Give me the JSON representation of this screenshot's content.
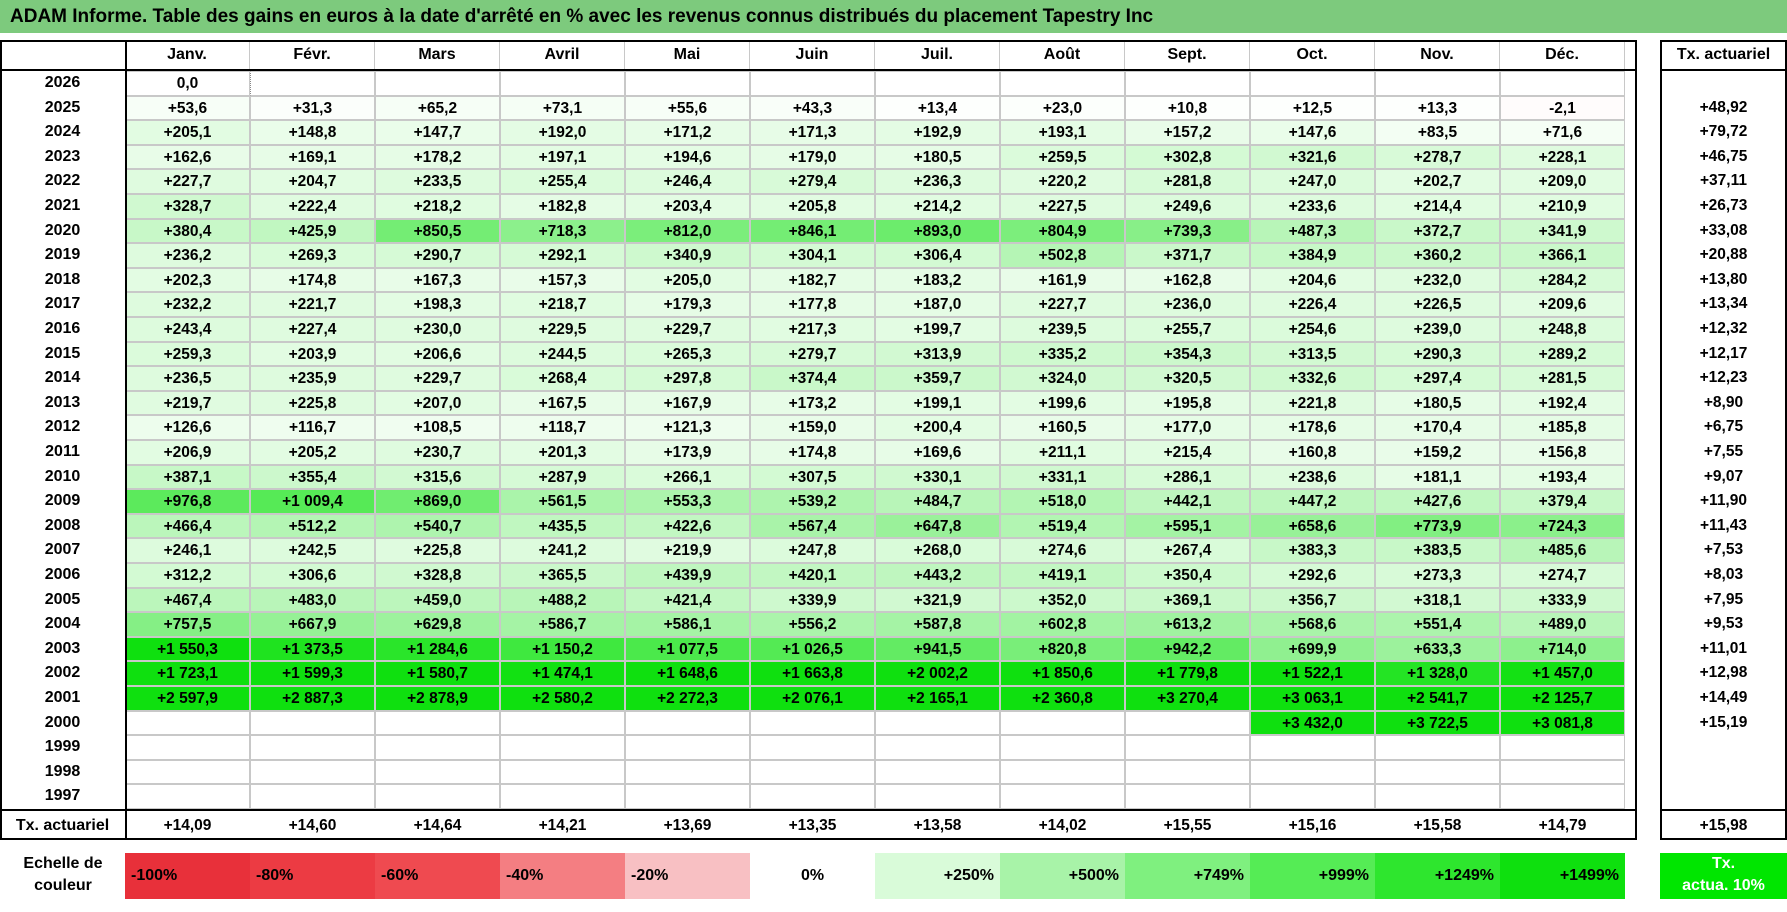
{
  "title": "ADAM Informe. Table des gains en euros à la date d'arrêté en % avec les revenus connus distribués du placement Tapestry Inc",
  "months": [
    "Janv.",
    "Févr.",
    "Mars",
    "Avril",
    "Mai",
    "Juin",
    "Juil.",
    "Août",
    "Sept.",
    "Oct.",
    "Nov.",
    "Déc."
  ],
  "tx_header": "Tx. actuariel",
  "rows": [
    {
      "year": "2026",
      "values": [
        "0,0",
        "",
        "",
        "",
        "",
        "",
        "",
        "",
        "",
        "",
        "",
        ""
      ],
      "tx": ""
    },
    {
      "year": "2025",
      "values": [
        "+53,6",
        "+31,3",
        "+65,2",
        "+73,1",
        "+55,6",
        "+43,3",
        "+13,4",
        "+23,0",
        "+10,8",
        "+12,5",
        "+13,3",
        "-2,1"
      ],
      "tx": "+48,92"
    },
    {
      "year": "2024",
      "values": [
        "+205,1",
        "+148,8",
        "+147,7",
        "+192,0",
        "+171,2",
        "+171,3",
        "+192,9",
        "+193,1",
        "+157,2",
        "+147,6",
        "+83,5",
        "+71,6"
      ],
      "tx": "+79,72"
    },
    {
      "year": "2023",
      "values": [
        "+162,6",
        "+169,1",
        "+178,2",
        "+197,1",
        "+194,6",
        "+179,0",
        "+180,5",
        "+259,5",
        "+302,8",
        "+321,6",
        "+278,7",
        "+228,1"
      ],
      "tx": "+46,75"
    },
    {
      "year": "2022",
      "values": [
        "+227,7",
        "+204,7",
        "+233,5",
        "+255,4",
        "+246,4",
        "+279,4",
        "+236,3",
        "+220,2",
        "+281,8",
        "+247,0",
        "+202,7",
        "+209,0"
      ],
      "tx": "+37,11"
    },
    {
      "year": "2021",
      "values": [
        "+328,7",
        "+222,4",
        "+218,2",
        "+182,8",
        "+203,4",
        "+205,8",
        "+214,2",
        "+227,5",
        "+249,6",
        "+233,6",
        "+214,4",
        "+210,9"
      ],
      "tx": "+26,73"
    },
    {
      "year": "2020",
      "values": [
        "+380,4",
        "+425,9",
        "+850,5",
        "+718,3",
        "+812,0",
        "+846,1",
        "+893,0",
        "+804,9",
        "+739,3",
        "+487,3",
        "+372,7",
        "+341,9"
      ],
      "tx": "+33,08"
    },
    {
      "year": "2019",
      "values": [
        "+236,2",
        "+269,3",
        "+290,7",
        "+292,1",
        "+340,9",
        "+304,1",
        "+306,4",
        "+502,8",
        "+371,7",
        "+384,9",
        "+360,2",
        "+366,1"
      ],
      "tx": "+20,88"
    },
    {
      "year": "2018",
      "values": [
        "+202,3",
        "+174,8",
        "+167,3",
        "+157,3",
        "+205,0",
        "+182,7",
        "+183,2",
        "+161,9",
        "+162,8",
        "+204,6",
        "+232,0",
        "+284,2"
      ],
      "tx": "+13,80"
    },
    {
      "year": "2017",
      "values": [
        "+232,2",
        "+221,7",
        "+198,3",
        "+218,7",
        "+179,3",
        "+177,8",
        "+187,0",
        "+227,7",
        "+236,0",
        "+226,4",
        "+226,5",
        "+209,6"
      ],
      "tx": "+13,34"
    },
    {
      "year": "2016",
      "values": [
        "+243,4",
        "+227,4",
        "+230,0",
        "+229,5",
        "+229,7",
        "+217,3",
        "+199,7",
        "+239,5",
        "+255,7",
        "+254,6",
        "+239,0",
        "+248,8"
      ],
      "tx": "+12,32"
    },
    {
      "year": "2015",
      "values": [
        "+259,3",
        "+203,9",
        "+206,6",
        "+244,5",
        "+265,3",
        "+279,7",
        "+313,9",
        "+335,2",
        "+354,3",
        "+313,5",
        "+290,3",
        "+289,2"
      ],
      "tx": "+12,17"
    },
    {
      "year": "2014",
      "values": [
        "+236,5",
        "+235,9",
        "+229,7",
        "+268,4",
        "+297,8",
        "+374,4",
        "+359,7",
        "+324,0",
        "+320,5",
        "+332,6",
        "+297,4",
        "+281,5"
      ],
      "tx": "+12,23"
    },
    {
      "year": "2013",
      "values": [
        "+219,7",
        "+225,8",
        "+207,0",
        "+167,5",
        "+167,9",
        "+173,2",
        "+199,1",
        "+199,6",
        "+195,8",
        "+221,8",
        "+180,5",
        "+192,4"
      ],
      "tx": "+8,90"
    },
    {
      "year": "2012",
      "values": [
        "+126,6",
        "+116,7",
        "+108,5",
        "+118,7",
        "+121,3",
        "+159,0",
        "+200,4",
        "+160,5",
        "+177,0",
        "+178,6",
        "+170,4",
        "+185,8"
      ],
      "tx": "+6,75"
    },
    {
      "year": "2011",
      "values": [
        "+206,9",
        "+205,2",
        "+230,7",
        "+201,3",
        "+173,9",
        "+174,8",
        "+169,6",
        "+211,1",
        "+215,4",
        "+160,8",
        "+159,2",
        "+156,8"
      ],
      "tx": "+7,55"
    },
    {
      "year": "2010",
      "values": [
        "+387,1",
        "+355,4",
        "+315,6",
        "+287,9",
        "+266,1",
        "+307,5",
        "+330,1",
        "+331,1",
        "+286,1",
        "+238,6",
        "+181,1",
        "+193,4"
      ],
      "tx": "+9,07"
    },
    {
      "year": "2009",
      "values": [
        "+976,8",
        "+1 009,4",
        "+869,0",
        "+561,5",
        "+553,3",
        "+539,2",
        "+484,7",
        "+518,0",
        "+442,1",
        "+447,2",
        "+427,6",
        "+379,4"
      ],
      "tx": "+11,90"
    },
    {
      "year": "2008",
      "values": [
        "+466,4",
        "+512,2",
        "+540,7",
        "+435,5",
        "+422,6",
        "+567,4",
        "+647,8",
        "+519,4",
        "+595,1",
        "+658,6",
        "+773,9",
        "+724,3"
      ],
      "tx": "+11,43"
    },
    {
      "year": "2007",
      "values": [
        "+246,1",
        "+242,5",
        "+225,8",
        "+241,2",
        "+219,9",
        "+247,8",
        "+268,0",
        "+274,6",
        "+267,4",
        "+383,3",
        "+383,5",
        "+485,6"
      ],
      "tx": "+7,53"
    },
    {
      "year": "2006",
      "values": [
        "+312,2",
        "+306,6",
        "+328,8",
        "+365,5",
        "+439,9",
        "+420,1",
        "+443,2",
        "+419,1",
        "+350,4",
        "+292,6",
        "+273,3",
        "+274,7"
      ],
      "tx": "+8,03"
    },
    {
      "year": "2005",
      "values": [
        "+467,4",
        "+483,0",
        "+459,0",
        "+488,2",
        "+421,4",
        "+339,9",
        "+321,9",
        "+352,0",
        "+369,1",
        "+356,7",
        "+318,1",
        "+333,9"
      ],
      "tx": "+7,95"
    },
    {
      "year": "2004",
      "values": [
        "+757,5",
        "+667,9",
        "+629,8",
        "+586,7",
        "+586,1",
        "+556,2",
        "+587,8",
        "+602,8",
        "+613,2",
        "+568,6",
        "+551,4",
        "+489,0"
      ],
      "tx": "+9,53"
    },
    {
      "year": "2003",
      "values": [
        "+1 550,3",
        "+1 373,5",
        "+1 284,6",
        "+1 150,2",
        "+1 077,5",
        "+1 026,5",
        "+941,5",
        "+820,8",
        "+942,2",
        "+699,9",
        "+633,3",
        "+714,0"
      ],
      "tx": "+11,01"
    },
    {
      "year": "2002",
      "values": [
        "+1 723,1",
        "+1 599,3",
        "+1 580,7",
        "+1 474,1",
        "+1 648,6",
        "+1 663,8",
        "+2 002,2",
        "+1 850,6",
        "+1 779,8",
        "+1 522,1",
        "+1 328,0",
        "+1 457,0"
      ],
      "tx": "+12,98"
    },
    {
      "year": "2001",
      "values": [
        "+2 597,9",
        "+2 887,3",
        "+2 878,9",
        "+2 580,2",
        "+2 272,3",
        "+2 076,1",
        "+2 165,1",
        "+2 360,8",
        "+3 270,4",
        "+3 063,1",
        "+2 541,7",
        "+2 125,7"
      ],
      "tx": "+14,49"
    },
    {
      "year": "2000",
      "values": [
        "",
        "",
        "",
        "",
        "",
        "",
        "",
        "",
        "",
        "+3 432,0",
        "+3 722,5",
        "+3 081,8"
      ],
      "tx": "+15,19"
    },
    {
      "year": "1999",
      "values": [
        "",
        "",
        "",
        "",
        "",
        "",
        "",
        "",
        "",
        "",
        "",
        ""
      ],
      "tx": ""
    },
    {
      "year": "1998",
      "values": [
        "",
        "",
        "",
        "",
        "",
        "",
        "",
        "",
        "",
        "",
        "",
        ""
      ],
      "tx": ""
    },
    {
      "year": "1997",
      "values": [
        "",
        "",
        "",
        "",
        "",
        "",
        "",
        "",
        "",
        "",
        "",
        ""
      ],
      "tx": ""
    }
  ],
  "footer": {
    "label": "Tx. actuariel",
    "values": [
      "+14,09",
      "+14,60",
      "+14,64",
      "+14,21",
      "+13,69",
      "+13,35",
      "+13,58",
      "+14,02",
      "+15,55",
      "+15,16",
      "+15,58",
      "+14,79"
    ],
    "tx": "+15,98"
  },
  "scale": {
    "label_line1": "Echelle de",
    "label_line2": "couleur",
    "items": [
      {
        "label": "-100%",
        "color": "#e8303a",
        "align": "left"
      },
      {
        "label": "-80%",
        "color": "#ec3b43",
        "align": "left"
      },
      {
        "label": "-60%",
        "color": "#ef4a50",
        "align": "left"
      },
      {
        "label": "-40%",
        "color": "#f47e82",
        "align": "left"
      },
      {
        "label": "-20%",
        "color": "#f8c0c3",
        "align": "left"
      },
      {
        "label": "0%",
        "color": "#ffffff",
        "align": "center"
      },
      {
        "label": "+250%",
        "color": "#d9fbd9",
        "align": "right"
      },
      {
        "label": "+500%",
        "color": "#a8f3a8",
        "align": "right"
      },
      {
        "label": "+749%",
        "color": "#7ff07f",
        "align": "right"
      },
      {
        "label": "+999%",
        "color": "#55ec55",
        "align": "right"
      },
      {
        "label": "+1249%",
        "color": "#2ee62e",
        "align": "right"
      },
      {
        "label": "+1499%",
        "color": "#0ee00e",
        "align": "right"
      }
    ],
    "tx_line1": "Tx.",
    "tx_line2": "actua. 10%"
  },
  "colors": {
    "title_bg": "#7dca7d",
    "tx_green": "#00e600"
  }
}
